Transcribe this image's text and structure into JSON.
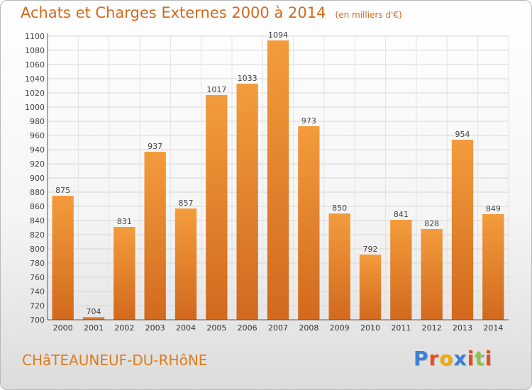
{
  "header": {
    "title": "Achats et Charges Externes 2000 à 2014",
    "unit": "(en milliers d'€)"
  },
  "footer": {
    "city": "CHâTEAUNEUF-DU-RHôNE",
    "brand": "Proxiti",
    "brand_colors": [
      "#3a7fd5",
      "#e84e1b",
      "#f2a900",
      "#3a7fd5",
      "#e84e1b",
      "#8bc34a",
      "#e84e1b"
    ]
  },
  "chart_data": {
    "type": "bar",
    "categories": [
      "2000",
      "2001",
      "2002",
      "2003",
      "2004",
      "2005",
      "2006",
      "2007",
      "2008",
      "2009",
      "2010",
      "2011",
      "2012",
      "2013",
      "2014"
    ],
    "values": [
      875,
      704,
      831,
      937,
      857,
      1017,
      1033,
      1094,
      973,
      850,
      792,
      841,
      828,
      954,
      849
    ],
    "title": "Achats et Charges Externes 2000 à 2014",
    "xlabel": "",
    "ylabel": "",
    "ylim": [
      700,
      1100
    ],
    "ytick_step": 20,
    "grid": true,
    "bar_color": "#f39c3c",
    "bar_color_dark": "#d2691e"
  }
}
